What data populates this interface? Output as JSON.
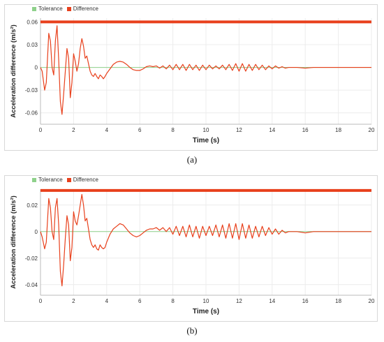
{
  "chart_data": [
    {
      "type": "line",
      "panel_label": "(a)",
      "xlabel": "Time (s)",
      "ylabel": "Acceleration difference (m/s²)",
      "xlim": [
        0,
        20
      ],
      "ylim": [
        -0.075,
        0.065
      ],
      "x_ticks": [
        0,
        2,
        4,
        6,
        8,
        10,
        12,
        14,
        16,
        18,
        20
      ],
      "y_ticks": [
        -0.06,
        -0.03,
        0,
        0.03,
        0.06
      ],
      "y_tick_labels": [
        "-0.06",
        "-0.03",
        "0",
        "0.03",
        "0.06"
      ],
      "grid": true,
      "legend_position": "top-left",
      "series": [
        {
          "name": "Tolerance",
          "color": "#8fd18b",
          "constant": 0.0
        },
        {
          "name": "Difference",
          "color": "#e8401c",
          "bound": 0.06,
          "x": [
            0,
            0.1,
            0.25,
            0.35,
            0.5,
            0.6,
            0.7,
            0.8,
            0.9,
            1.0,
            1.1,
            1.2,
            1.3,
            1.4,
            1.5,
            1.6,
            1.7,
            1.8,
            1.9,
            2.0,
            2.1,
            2.2,
            2.3,
            2.4,
            2.5,
            2.6,
            2.7,
            2.8,
            2.9,
            3.0,
            3.1,
            3.2,
            3.3,
            3.4,
            3.5,
            3.6,
            3.7,
            3.8,
            3.9,
            4.0,
            4.2,
            4.4,
            4.6,
            4.8,
            5.0,
            5.2,
            5.4,
            5.6,
            5.8,
            6.0,
            6.2,
            6.4,
            6.6,
            6.8,
            7.0,
            7.2,
            7.4,
            7.6,
            7.8,
            8.0,
            8.2,
            8.4,
            8.6,
            8.8,
            9.0,
            9.2,
            9.4,
            9.6,
            9.8,
            10.0,
            10.2,
            10.4,
            10.6,
            10.8,
            11.0,
            11.2,
            11.4,
            11.6,
            11.8,
            12.0,
            12.2,
            12.4,
            12.6,
            12.8,
            13.0,
            13.2,
            13.4,
            13.6,
            13.8,
            14.0,
            14.2,
            14.4,
            14.6,
            14.8,
            15.0,
            15.5,
            16.0,
            16.5,
            17.0,
            17.5,
            18.0,
            18.5,
            19.0,
            19.5,
            20.0
          ],
          "y": [
            0,
            -0.005,
            -0.03,
            -0.02,
            0.045,
            0.035,
            0.0,
            -0.01,
            0.035,
            0.055,
            0.01,
            -0.045,
            -0.062,
            -0.035,
            -0.005,
            0.025,
            0.012,
            -0.04,
            -0.02,
            0.018,
            0.008,
            -0.005,
            0.005,
            0.025,
            0.038,
            0.028,
            0.012,
            0.015,
            0.005,
            -0.005,
            -0.01,
            -0.012,
            -0.008,
            -0.012,
            -0.015,
            -0.01,
            -0.012,
            -0.015,
            -0.012,
            -0.008,
            -0.002,
            0.004,
            0.007,
            0.008,
            0.007,
            0.004,
            0.0,
            -0.003,
            -0.004,
            -0.004,
            -0.002,
            0.001,
            0.002,
            0.001,
            0.002,
            -0.001,
            0.002,
            -0.002,
            0.003,
            -0.003,
            0.004,
            -0.003,
            0.004,
            -0.004,
            0.004,
            -0.003,
            0.003,
            -0.004,
            0.003,
            -0.003,
            0.003,
            -0.002,
            0.002,
            -0.002,
            0.003,
            -0.003,
            0.004,
            -0.004,
            0.005,
            -0.005,
            0.005,
            -0.005,
            0.004,
            -0.004,
            0.004,
            -0.003,
            0.003,
            -0.003,
            0.002,
            -0.002,
            0.002,
            -0.001,
            0.001,
            -0.001,
            0.0,
            0.0,
            -0.001,
            0.0,
            0.0,
            0.0,
            0.0,
            0.0,
            0.0,
            0.0,
            0.0
          ]
        }
      ]
    },
    {
      "type": "line",
      "panel_label": "(b)",
      "xlabel": "Time (s)",
      "ylabel": "Acceleration difference (m/s²)",
      "xlim": [
        0,
        20
      ],
      "ylim": [
        -0.048,
        0.032
      ],
      "x_ticks": [
        0,
        2,
        4,
        6,
        8,
        10,
        12,
        14,
        16,
        18,
        20
      ],
      "y_ticks": [
        -0.04,
        -0.02,
        0,
        0.02
      ],
      "y_tick_labels": [
        "-0.04",
        "-0.02",
        "0",
        "0.02"
      ],
      "grid": true,
      "legend_position": "top-left",
      "series": [
        {
          "name": "Tolerance",
          "color": "#8fd18b",
          "constant": 0.0
        },
        {
          "name": "Difference",
          "color": "#e8401c",
          "bound": 0.031,
          "x": [
            0,
            0.1,
            0.25,
            0.35,
            0.5,
            0.6,
            0.7,
            0.8,
            0.9,
            1.0,
            1.1,
            1.2,
            1.3,
            1.4,
            1.5,
            1.6,
            1.7,
            1.8,
            1.9,
            2.0,
            2.1,
            2.2,
            2.3,
            2.4,
            2.5,
            2.6,
            2.7,
            2.8,
            2.9,
            3.0,
            3.1,
            3.2,
            3.3,
            3.4,
            3.5,
            3.6,
            3.7,
            3.8,
            3.9,
            4.0,
            4.2,
            4.4,
            4.6,
            4.8,
            5.0,
            5.2,
            5.4,
            5.6,
            5.8,
            6.0,
            6.2,
            6.4,
            6.6,
            6.8,
            7.0,
            7.2,
            7.4,
            7.6,
            7.8,
            8.0,
            8.2,
            8.4,
            8.6,
            8.8,
            9.0,
            9.2,
            9.4,
            9.6,
            9.8,
            10.0,
            10.2,
            10.4,
            10.6,
            10.8,
            11.0,
            11.2,
            11.4,
            11.6,
            11.8,
            12.0,
            12.2,
            12.4,
            12.6,
            12.8,
            13.0,
            13.2,
            13.4,
            13.6,
            13.8,
            14.0,
            14.2,
            14.4,
            14.6,
            14.8,
            15.0,
            15.5,
            16.0,
            16.5,
            17.0,
            17.5,
            18.0,
            18.5,
            19.0,
            19.5,
            20.0
          ],
          "y": [
            0,
            -0.004,
            -0.013,
            -0.008,
            0.025,
            0.018,
            0.0,
            -0.006,
            0.018,
            0.025,
            0.005,
            -0.03,
            -0.041,
            -0.025,
            -0.005,
            0.012,
            0.005,
            -0.022,
            -0.012,
            0.015,
            0.008,
            0.005,
            0.012,
            0.02,
            0.028,
            0.02,
            0.008,
            0.01,
            0.002,
            -0.006,
            -0.01,
            -0.012,
            -0.01,
            -0.013,
            -0.014,
            -0.01,
            -0.012,
            -0.013,
            -0.012,
            -0.008,
            -0.002,
            0.002,
            0.004,
            0.006,
            0.005,
            0.002,
            -0.001,
            -0.003,
            -0.004,
            -0.003,
            -0.001,
            0.001,
            0.002,
            0.002,
            0.003,
            0.001,
            0.003,
            0.0,
            0.003,
            -0.002,
            0.004,
            -0.003,
            0.004,
            -0.004,
            0.005,
            -0.004,
            0.004,
            -0.005,
            0.004,
            -0.003,
            0.004,
            -0.003,
            0.005,
            -0.004,
            0.005,
            -0.005,
            0.006,
            -0.005,
            0.006,
            -0.006,
            0.006,
            -0.005,
            0.005,
            -0.005,
            0.004,
            -0.004,
            0.004,
            -0.003,
            0.003,
            -0.002,
            0.002,
            -0.002,
            0.001,
            -0.001,
            0.0,
            0.0,
            -0.001,
            0.0,
            0.0,
            0.0,
            0.0,
            0.0,
            0.0,
            0.0,
            0.0
          ]
        }
      ]
    }
  ]
}
